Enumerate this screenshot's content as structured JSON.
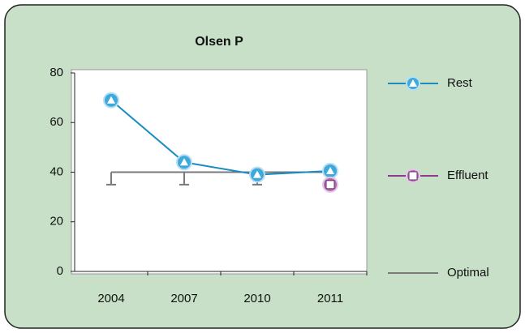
{
  "chart_data": {
    "type": "line",
    "title": "Olsen P",
    "categories": [
      "2004",
      "2007",
      "2010",
      "2011"
    ],
    "series": [
      {
        "name": "Rest",
        "color": "#1a8cc2",
        "marker": "triangle",
        "values": [
          69,
          44,
          39,
          40.5
        ]
      },
      {
        "name": "Effluent",
        "color": "#8e3b8e",
        "marker": "square",
        "values": [
          null,
          null,
          null,
          35
        ]
      },
      {
        "name": "Optimal",
        "color": "#7a7a7a",
        "marker": "none",
        "values": [
          40,
          40,
          40,
          40
        ],
        "errors": [
          5,
          5,
          5,
          5
        ]
      }
    ],
    "ylim": [
      0,
      80
    ],
    "yticks": [
      0,
      20,
      40,
      60,
      80
    ],
    "grid": false,
    "legend": "right"
  }
}
